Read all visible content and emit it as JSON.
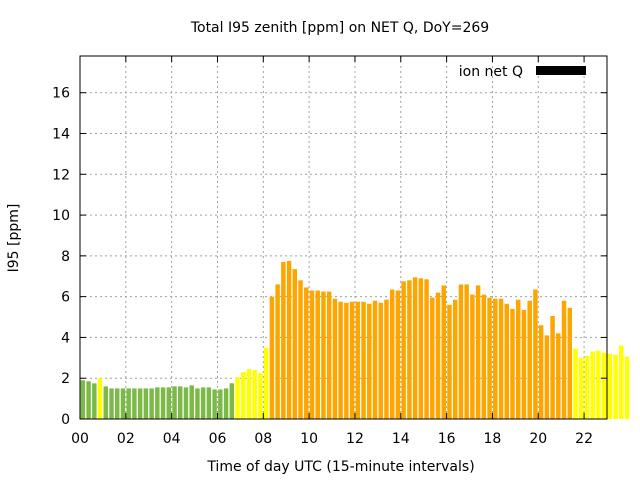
{
  "chart_data": {
    "type": "bar",
    "title": "Total I95 zenith [ppm] on NET Q, DoY=269",
    "xlabel": "Time of day UTC (15-minute intervals)",
    "ylabel": "I95 [ppm]",
    "x_range": [
      0,
      23
    ],
    "ylim": [
      0,
      17.8
    ],
    "x_ticks": [
      0,
      2,
      4,
      6,
      8,
      10,
      12,
      14,
      16,
      18,
      20,
      22
    ],
    "x_tick_labels": [
      "00",
      "02",
      "04",
      "06",
      "08",
      "10",
      "12",
      "14",
      "16",
      "18",
      "20",
      "22"
    ],
    "y_ticks": [
      0,
      2,
      4,
      6,
      8,
      10,
      12,
      14,
      16
    ],
    "y_tick_labels": [
      "0",
      "2",
      "4",
      "6",
      "8",
      "10",
      "12",
      "14",
      "16"
    ],
    "grid": true,
    "legend": {
      "label": "ion net Q",
      "position": "top-right",
      "color": "#000000"
    },
    "x_start": 0.125,
    "x_step": 0.25,
    "values": [
      1.9,
      1.85,
      1.75,
      2.0,
      1.6,
      1.5,
      1.5,
      1.5,
      1.5,
      1.5,
      1.5,
      1.5,
      1.5,
      1.55,
      1.55,
      1.55,
      1.6,
      1.6,
      1.55,
      1.65,
      1.5,
      1.55,
      1.55,
      1.45,
      1.45,
      1.5,
      1.75,
      2.05,
      2.3,
      2.45,
      2.4,
      2.25,
      3.5,
      6.0,
      6.6,
      7.7,
      7.75,
      7.35,
      6.8,
      6.45,
      6.3,
      6.3,
      6.25,
      6.25,
      5.9,
      5.75,
      5.7,
      5.75,
      5.75,
      5.75,
      5.65,
      5.8,
      5.7,
      5.85,
      6.35,
      6.3,
      6.75,
      6.8,
      6.95,
      6.9,
      6.85,
      5.95,
      6.2,
      6.55,
      5.6,
      5.85,
      6.6,
      6.6,
      6.1,
      6.55,
      6.1,
      5.95,
      5.9,
      5.9,
      5.65,
      5.4,
      5.85,
      5.35,
      5.8,
      6.35,
      4.6,
      4.1,
      5.05,
      4.2,
      5.8,
      5.45,
      3.45,
      3.0,
      3.1,
      3.3,
      3.35,
      3.25,
      3.2,
      3.15,
      3.6,
      3.05
    ],
    "colors": {
      "low": "#7cba48",
      "medium": "#ffff00",
      "high": "#ffa500",
      "axis": "#000000",
      "grid": "#a0a0a0"
    },
    "color_thresholds": {
      "low_below": 2,
      "medium_below": 4
    }
  }
}
